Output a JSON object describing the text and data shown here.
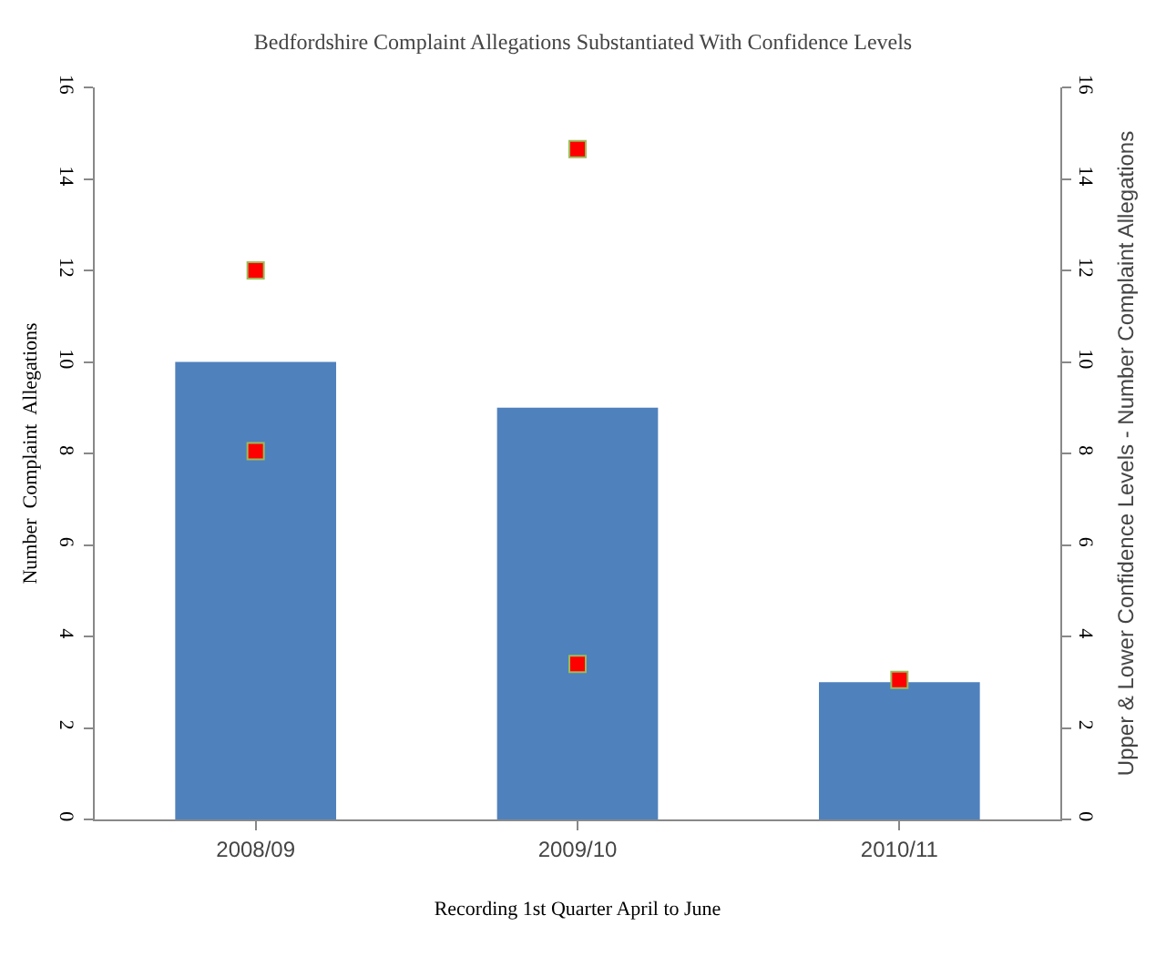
{
  "chart_data": {
    "type": "bar",
    "title": "Bedfordshire Complaint Allegations Substantiated With Confidence Levels",
    "xlabel": "Recording 1st Quarter April to June",
    "ylabel": "Number  Complaint  Allegations",
    "y2label": "Upper & Lower Confidence Levels - Number Complaint Allegations",
    "categories": [
      "2008/09",
      "2009/10",
      "2010/11"
    ],
    "series": [
      {
        "color": "#4f81bd",
        "values": [
          10,
          9,
          3
        ]
      },
      {
        "type": "scatter",
        "axis": "y2",
        "color": "#ff0000",
        "values": [
          12,
          14.65,
          3.05
        ]
      },
      {
        "type": "scatter",
        "axis": "y2",
        "color": "#ff0000",
        "values": [
          8.05,
          3.4,
          null
        ]
      }
    ],
    "ylim": [
      0,
      16
    ],
    "yticks": [
      0,
      2,
      4,
      6,
      8,
      10,
      12,
      14,
      16
    ],
    "y2lim": [
      0,
      16
    ],
    "y2ticks": [
      0,
      2,
      4,
      6,
      8,
      10,
      12,
      14,
      16
    ],
    "grid": false
  }
}
